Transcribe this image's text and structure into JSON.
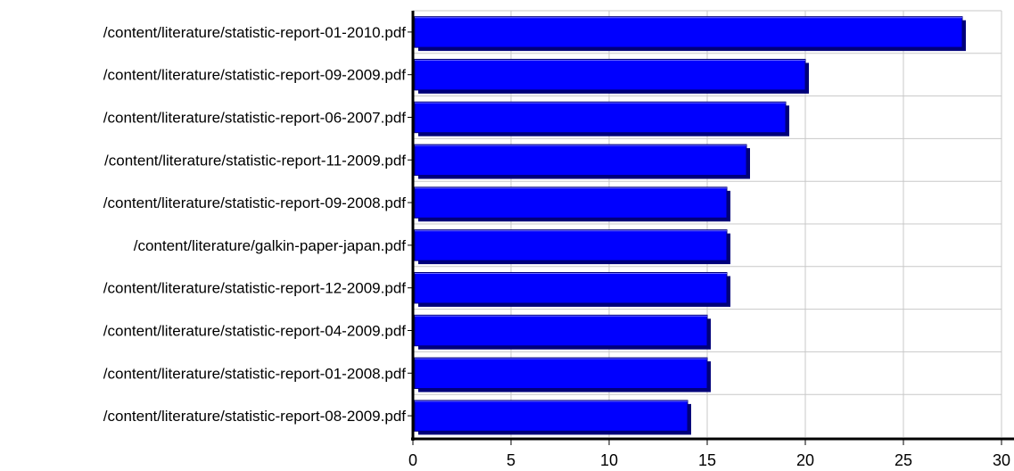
{
  "chart_data": {
    "type": "bar",
    "orientation": "horizontal",
    "title": "",
    "xlabel": "",
    "ylabel": "",
    "categories": [
      "/content/literature/statistic-report-01-2010.pdf",
      "/content/literature/statistic-report-09-2009.pdf",
      "/content/literature/statistic-report-06-2007.pdf",
      "/content/literature/statistic-report-11-2009.pdf",
      "/content/literature/statistic-report-09-2008.pdf",
      "/content/literature/galkin-paper-japan.pdf",
      "/content/literature/statistic-report-12-2009.pdf",
      "/content/literature/statistic-report-04-2009.pdf",
      "/content/literature/statistic-report-01-2008.pdf",
      "/content/literature/statistic-report-08-2009.pdf"
    ],
    "values": [
      28,
      20,
      19,
      17,
      16,
      16,
      16,
      15,
      15,
      14
    ],
    "xlim": [
      0,
      30
    ],
    "xticks": [
      "0",
      "5",
      "10",
      "15",
      "20",
      "25",
      "30"
    ],
    "grid": true,
    "colors": {
      "bar": "#0000ff",
      "bar_shadow": "#00007a",
      "grid": "#c8c8c8",
      "axis": "#000000"
    }
  }
}
